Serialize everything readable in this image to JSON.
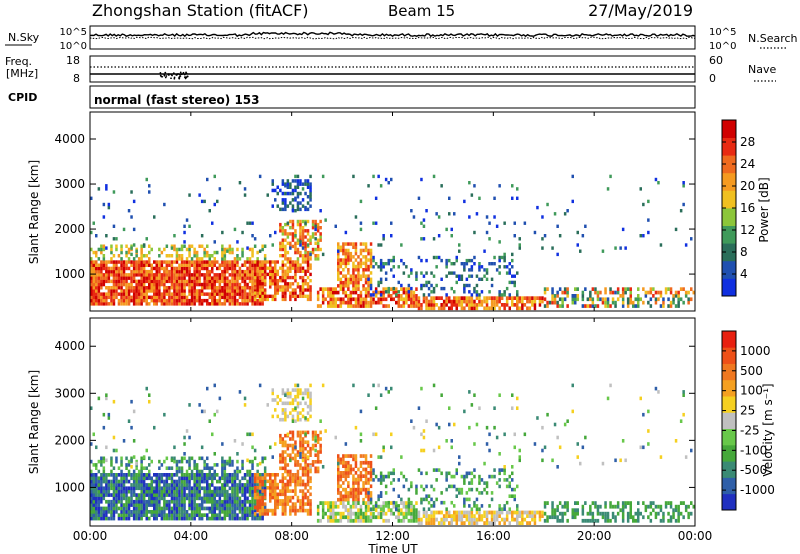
{
  "header": {
    "station": "Zhongshan Station (fitACF)",
    "beam": "Beam 15",
    "date": "27/May/2019"
  },
  "noise_panel": {
    "left_label": "N.Sky",
    "left_ticks": [
      "10^5",
      "10^0"
    ],
    "right_ticks": [
      "10^5",
      "10^0"
    ],
    "right_label": "N.Search"
  },
  "freq_panel": {
    "left_label_top": "Freq.",
    "left_label_unit": "[MHz]",
    "left_ticks": [
      "18",
      "8"
    ],
    "right_ticks": [
      "60",
      "0"
    ],
    "right_label": "Nave"
  },
  "cpid": {
    "label": "CPID",
    "mode": "normal (fast stereo) 153"
  },
  "x_axis": {
    "label": "Time UT",
    "ticks": [
      "00:00",
      "04:00",
      "08:00",
      "12:00",
      "16:00",
      "20:00",
      "00:00"
    ]
  },
  "chart_data": [
    {
      "type": "heatmap",
      "panel": "power",
      "ylabel": "Slant Range [km]",
      "yticks": [
        1000,
        2000,
        3000,
        4000
      ],
      "ylim": [
        180,
        4600
      ],
      "xlim_hours": [
        0,
        24
      ],
      "colorbar": {
        "label": "Power [dB]",
        "ticks": [
          "4",
          "8",
          "12",
          "16",
          "20",
          "24",
          "28"
        ],
        "colors": [
          "#1030e0",
          "#2050b0",
          "#2a6e5a",
          "#3f9a5a",
          "#8cc63a",
          "#f0c020",
          "#f59a20",
          "#ef6a1e",
          "#e82a12",
          "#d00000"
        ]
      }
    },
    {
      "type": "heatmap",
      "panel": "velocity",
      "ylabel": "Slant Range [km]",
      "yticks": [
        1000,
        2000,
        3000,
        4000
      ],
      "ylim": [
        180,
        4600
      ],
      "xlim_hours": [
        0,
        24
      ],
      "colorbar": {
        "label": "Velocity [m s⁻¹]",
        "ticks": [
          "1000",
          "500",
          "100",
          "25",
          "-25",
          "-100",
          "-500",
          "-1000"
        ],
        "colors": [
          "#2030c0",
          "#2f5fa8",
          "#3a8a74",
          "#45a83a",
          "#68c84a",
          "#c0c0c0",
          "#f5d020",
          "#f5a020",
          "#f07820",
          "#ee5018",
          "#e82010"
        ]
      }
    }
  ]
}
